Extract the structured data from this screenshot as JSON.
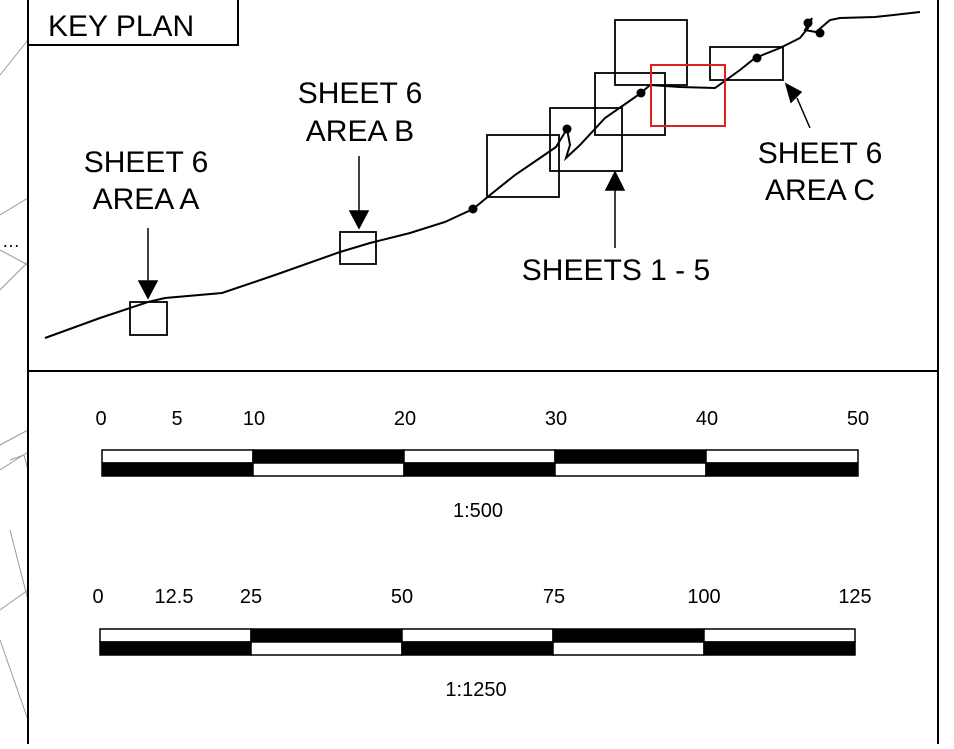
{
  "key_plan": {
    "title": "KEY PLAN",
    "labels": {
      "area_a": [
        "SHEET 6",
        "AREA A"
      ],
      "area_b": [
        "SHEET 6",
        "AREA B"
      ],
      "area_c": [
        "SHEET 6",
        "AREA C"
      ],
      "sheets": "SHEETS 1 - 5"
    },
    "highlight_color": "#e02020"
  },
  "background_fragment": "…",
  "scale_bars": [
    {
      "id": "scale-500",
      "caption": "1:500",
      "ticks": [
        "0",
        "5",
        "10",
        "20",
        "30",
        "40",
        "50"
      ]
    },
    {
      "id": "scale-1250",
      "caption": "1:1250",
      "ticks": [
        "0",
        "12.5",
        "25",
        "50",
        "75",
        "100",
        "125"
      ]
    }
  ]
}
